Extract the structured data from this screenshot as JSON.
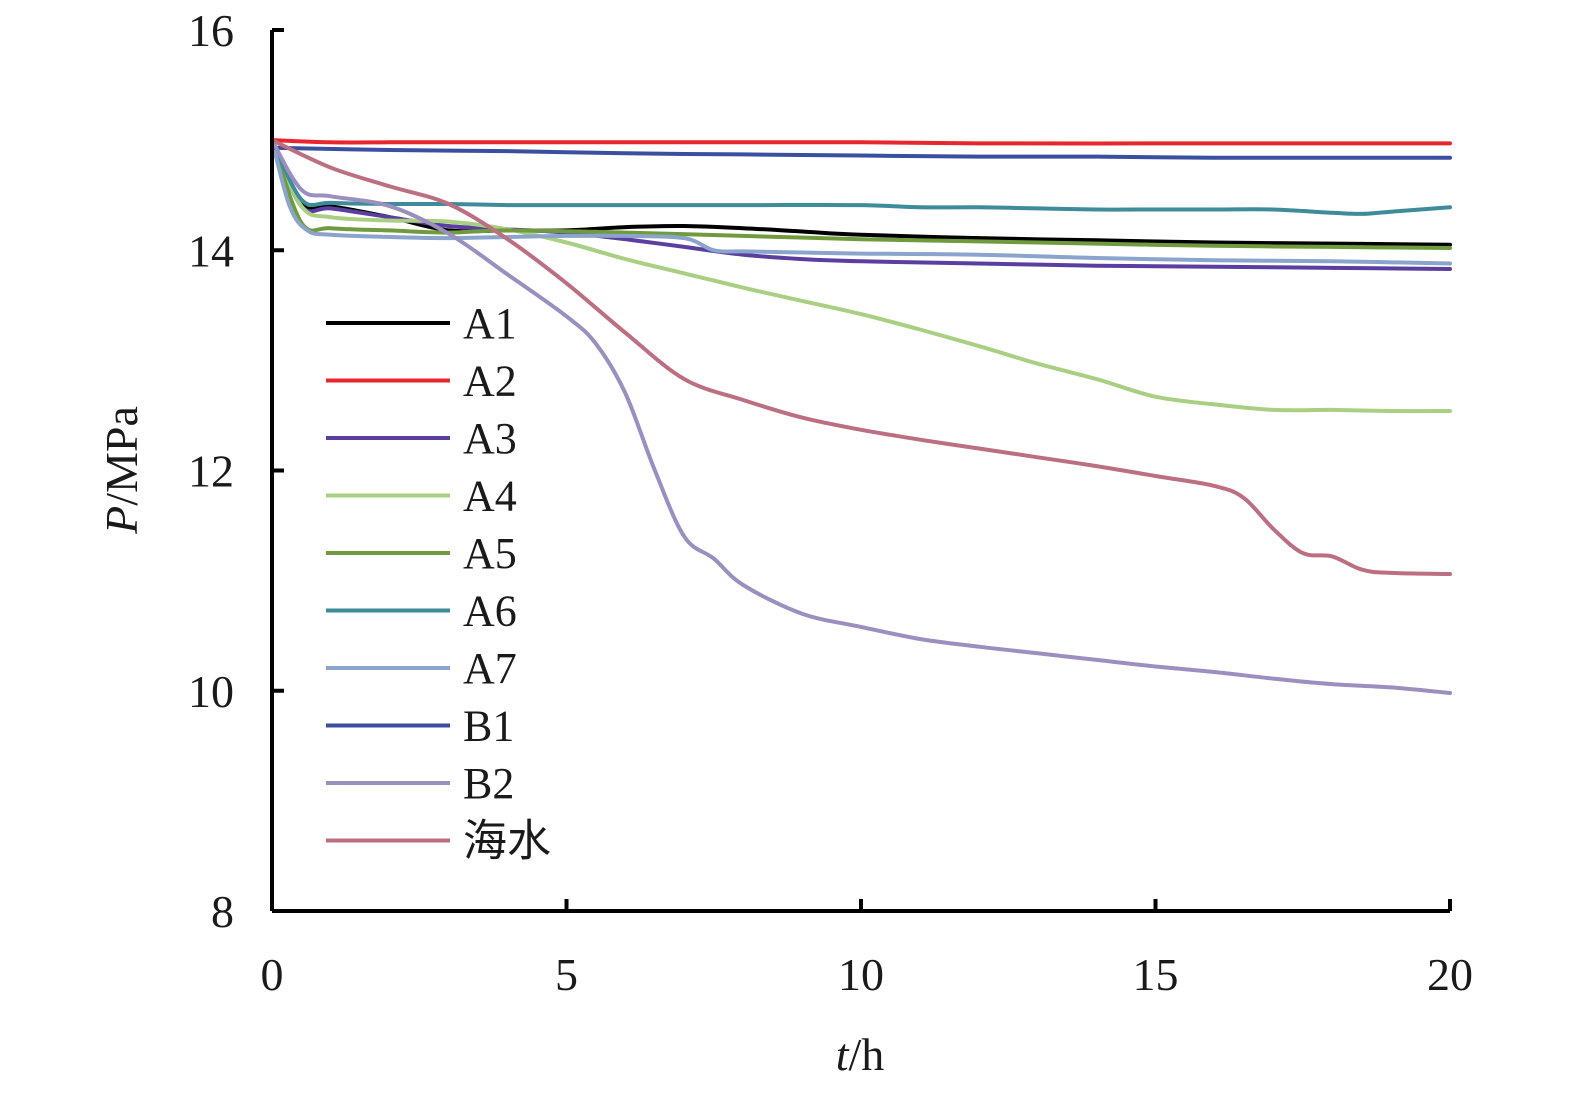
{
  "chart_data": {
    "type": "line",
    "xlabel": {
      "italic": "t",
      "rest": "/h"
    },
    "ylabel": {
      "italic": "P",
      "rest": "/MPa"
    },
    "xlim": [
      0,
      20
    ],
    "ylim": [
      8,
      16
    ],
    "x_ticks": [
      0,
      5,
      10,
      15,
      20
    ],
    "y_ticks": [
      8,
      10,
      12,
      14,
      16
    ],
    "grid": false,
    "legend_position": "left",
    "series": [
      {
        "name": "A1",
        "color": "#000000",
        "points": [
          [
            0,
            15
          ],
          [
            0.5,
            14.42
          ],
          [
            1,
            14.4
          ],
          [
            2,
            14.3
          ],
          [
            3,
            14.18
          ],
          [
            4,
            14.18
          ],
          [
            5,
            14.18
          ],
          [
            6,
            14.21
          ],
          [
            7,
            14.22
          ],
          [
            8,
            14.2
          ],
          [
            9,
            14.17
          ],
          [
            10,
            14.14
          ],
          [
            12,
            14.11
          ],
          [
            14,
            14.09
          ],
          [
            16,
            14.07
          ],
          [
            18,
            14.06
          ],
          [
            20,
            14.05
          ]
        ]
      },
      {
        "name": "A2",
        "color": "#e8262d",
        "points": [
          [
            0,
            15
          ],
          [
            1,
            14.98
          ],
          [
            2,
            14.98
          ],
          [
            3,
            14.98
          ],
          [
            5,
            14.98
          ],
          [
            8,
            14.98
          ],
          [
            10,
            14.98
          ],
          [
            12,
            14.97
          ],
          [
            15,
            14.97
          ],
          [
            18,
            14.97
          ],
          [
            20,
            14.97
          ]
        ]
      },
      {
        "name": "A3",
        "color": "#5b3fa0",
        "points": [
          [
            0,
            15
          ],
          [
            0.5,
            14.4
          ],
          [
            1,
            14.38
          ],
          [
            2,
            14.3
          ],
          [
            3,
            14.22
          ],
          [
            4,
            14.19
          ],
          [
            5,
            14.16
          ],
          [
            6,
            14.1
          ],
          [
            7,
            14.03
          ],
          [
            8,
            13.96
          ],
          [
            9,
            13.92
          ],
          [
            10,
            13.9
          ],
          [
            12,
            13.88
          ],
          [
            14,
            13.86
          ],
          [
            16,
            13.85
          ],
          [
            18,
            13.84
          ],
          [
            20,
            13.83
          ]
        ]
      },
      {
        "name": "A4",
        "color": "#a8cf82",
        "points": [
          [
            0,
            15
          ],
          [
            0.5,
            14.4
          ],
          [
            1,
            14.3
          ],
          [
            2,
            14.27
          ],
          [
            3,
            14.26
          ],
          [
            4,
            14.19
          ],
          [
            5,
            14.07
          ],
          [
            6,
            13.92
          ],
          [
            7,
            13.79
          ],
          [
            8,
            13.66
          ],
          [
            9,
            13.54
          ],
          [
            10,
            13.42
          ],
          [
            11,
            13.28
          ],
          [
            12,
            13.13
          ],
          [
            13,
            12.97
          ],
          [
            14,
            12.83
          ],
          [
            15,
            12.67
          ],
          [
            16,
            12.6
          ],
          [
            17,
            12.55
          ],
          [
            18,
            12.55
          ],
          [
            19,
            12.54
          ],
          [
            20,
            12.54
          ]
        ]
      },
      {
        "name": "A5",
        "color": "#6f9b3e",
        "points": [
          [
            0,
            15
          ],
          [
            0.5,
            14.25
          ],
          [
            1,
            14.2
          ],
          [
            2,
            14.18
          ],
          [
            3,
            14.16
          ],
          [
            4,
            14.18
          ],
          [
            6,
            14.16
          ],
          [
            8,
            14.13
          ],
          [
            10,
            14.1
          ],
          [
            12,
            14.08
          ],
          [
            14,
            14.06
          ],
          [
            16,
            14.04
          ],
          [
            18,
            14.03
          ],
          [
            20,
            14.02
          ]
        ]
      },
      {
        "name": "A6",
        "color": "#3e8b9a",
        "points": [
          [
            0,
            15
          ],
          [
            0.5,
            14.46
          ],
          [
            1,
            14.43
          ],
          [
            2,
            14.42
          ],
          [
            3,
            14.42
          ],
          [
            4,
            14.41
          ],
          [
            5,
            14.41
          ],
          [
            6,
            14.41
          ],
          [
            8,
            14.41
          ],
          [
            10,
            14.41
          ],
          [
            11,
            14.39
          ],
          [
            12,
            14.39
          ],
          [
            13,
            14.38
          ],
          [
            14,
            14.37
          ],
          [
            15,
            14.37
          ],
          [
            16,
            14.37
          ],
          [
            17,
            14.37
          ],
          [
            18,
            14.34
          ],
          [
            18.5,
            14.33
          ],
          [
            19,
            14.35
          ],
          [
            20,
            14.39
          ]
        ]
      },
      {
        "name": "A7",
        "color": "#8aa4cc",
        "points": [
          [
            0,
            15
          ],
          [
            0.3,
            14.4
          ],
          [
            0.6,
            14.18
          ],
          [
            1,
            14.14
          ],
          [
            2,
            14.12
          ],
          [
            3,
            14.11
          ],
          [
            4,
            14.12
          ],
          [
            5,
            14.13
          ],
          [
            6,
            14.13
          ],
          [
            7,
            14.11
          ],
          [
            7.5,
            14.0
          ],
          [
            8,
            13.99
          ],
          [
            9,
            13.98
          ],
          [
            10,
            13.97
          ],
          [
            12,
            13.96
          ],
          [
            14,
            13.93
          ],
          [
            16,
            13.91
          ],
          [
            18,
            13.9
          ],
          [
            20,
            13.88
          ]
        ]
      },
      {
        "name": "B1",
        "color": "#3b4fa0",
        "points": [
          [
            0,
            14.93
          ],
          [
            2,
            14.91
          ],
          [
            4,
            14.9
          ],
          [
            6,
            14.88
          ],
          [
            8,
            14.87
          ],
          [
            10,
            14.86
          ],
          [
            12,
            14.85
          ],
          [
            14,
            14.85
          ],
          [
            16,
            14.84
          ],
          [
            18,
            14.84
          ],
          [
            20,
            14.84
          ]
        ]
      },
      {
        "name": "B2",
        "color": "#9b8fc0",
        "points": [
          [
            0,
            15
          ],
          [
            0.5,
            14.55
          ],
          [
            1,
            14.49
          ],
          [
            2,
            14.4
          ],
          [
            3,
            14.15
          ],
          [
            4,
            13.78
          ],
          [
            5,
            13.4
          ],
          [
            5.5,
            13.15
          ],
          [
            6,
            12.7
          ],
          [
            6.5,
            12
          ],
          [
            7,
            11.4
          ],
          [
            7.5,
            11.2
          ],
          [
            8,
            10.96
          ],
          [
            9,
            10.7
          ],
          [
            10,
            10.58
          ],
          [
            11,
            10.47
          ],
          [
            12,
            10.4
          ],
          [
            13,
            10.34
          ],
          [
            14,
            10.28
          ],
          [
            15,
            10.22
          ],
          [
            16,
            10.17
          ],
          [
            17,
            10.11
          ],
          [
            18,
            10.06
          ],
          [
            19,
            10.03
          ],
          [
            20,
            9.98
          ]
        ]
      },
      {
        "name": "海水",
        "color": "#bc6f80",
        "points": [
          [
            0,
            15
          ],
          [
            1,
            14.75
          ],
          [
            2,
            14.58
          ],
          [
            3,
            14.42
          ],
          [
            4,
            14.1
          ],
          [
            5,
            13.7
          ],
          [
            6,
            13.25
          ],
          [
            7,
            12.83
          ],
          [
            8,
            12.64
          ],
          [
            9,
            12.48
          ],
          [
            10,
            12.37
          ],
          [
            11,
            12.28
          ],
          [
            12,
            12.2
          ],
          [
            13,
            12.12
          ],
          [
            14,
            12.04
          ],
          [
            15,
            11.95
          ],
          [
            16,
            11.86
          ],
          [
            16.5,
            11.75
          ],
          [
            17,
            11.47
          ],
          [
            17.5,
            11.25
          ],
          [
            18,
            11.22
          ],
          [
            18.5,
            11.1
          ],
          [
            19,
            11.07
          ],
          [
            20,
            11.06
          ]
        ]
      }
    ]
  }
}
